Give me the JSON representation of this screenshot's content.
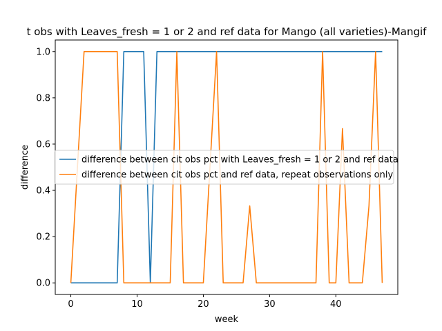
{
  "chart_data": {
    "type": "line",
    "title": "t obs with Leaves_fresh = 1 or 2 and ref data for Mango (all varieties)-Mangif",
    "xlabel": "week",
    "ylabel": "difference",
    "xlim": [
      -2.35,
      49.35
    ],
    "ylim": [
      -0.05,
      1.05
    ],
    "xticks": [
      0,
      10,
      20,
      30,
      40
    ],
    "yticks": [
      0.0,
      0.2,
      0.4,
      0.6,
      0.8,
      1.0
    ],
    "xtick_labels": [
      "0",
      "10",
      "20",
      "30",
      "40"
    ],
    "ytick_labels": [
      "0.0",
      "0.2",
      "0.4",
      "0.6",
      "0.8",
      "1.0"
    ],
    "grid": false,
    "legend_position": "center-right",
    "series": [
      {
        "name": "difference between cit obs pct with Leaves_fresh = 1 or 2 and ref data",
        "color": "#1f77b4",
        "x": [
          0,
          7,
          8,
          11,
          12,
          13,
          47
        ],
        "y": [
          0,
          0,
          1,
          1,
          0,
          1,
          1
        ]
      },
      {
        "name": "difference between cit obs pct and ref data, repeat observations only",
        "color": "#ff7f0e",
        "x": [
          0,
          2,
          7,
          8,
          15,
          16,
          17,
          20,
          22,
          23,
          26,
          27,
          28,
          37,
          38,
          39,
          40,
          41,
          42,
          44,
          45,
          46,
          47
        ],
        "y": [
          0,
          1,
          1,
          0,
          0,
          1,
          0,
          0,
          1,
          0,
          0,
          0.333,
          0,
          0,
          1,
          0,
          0,
          0.667,
          0,
          0,
          0.333,
          1,
          0
        ]
      }
    ]
  }
}
